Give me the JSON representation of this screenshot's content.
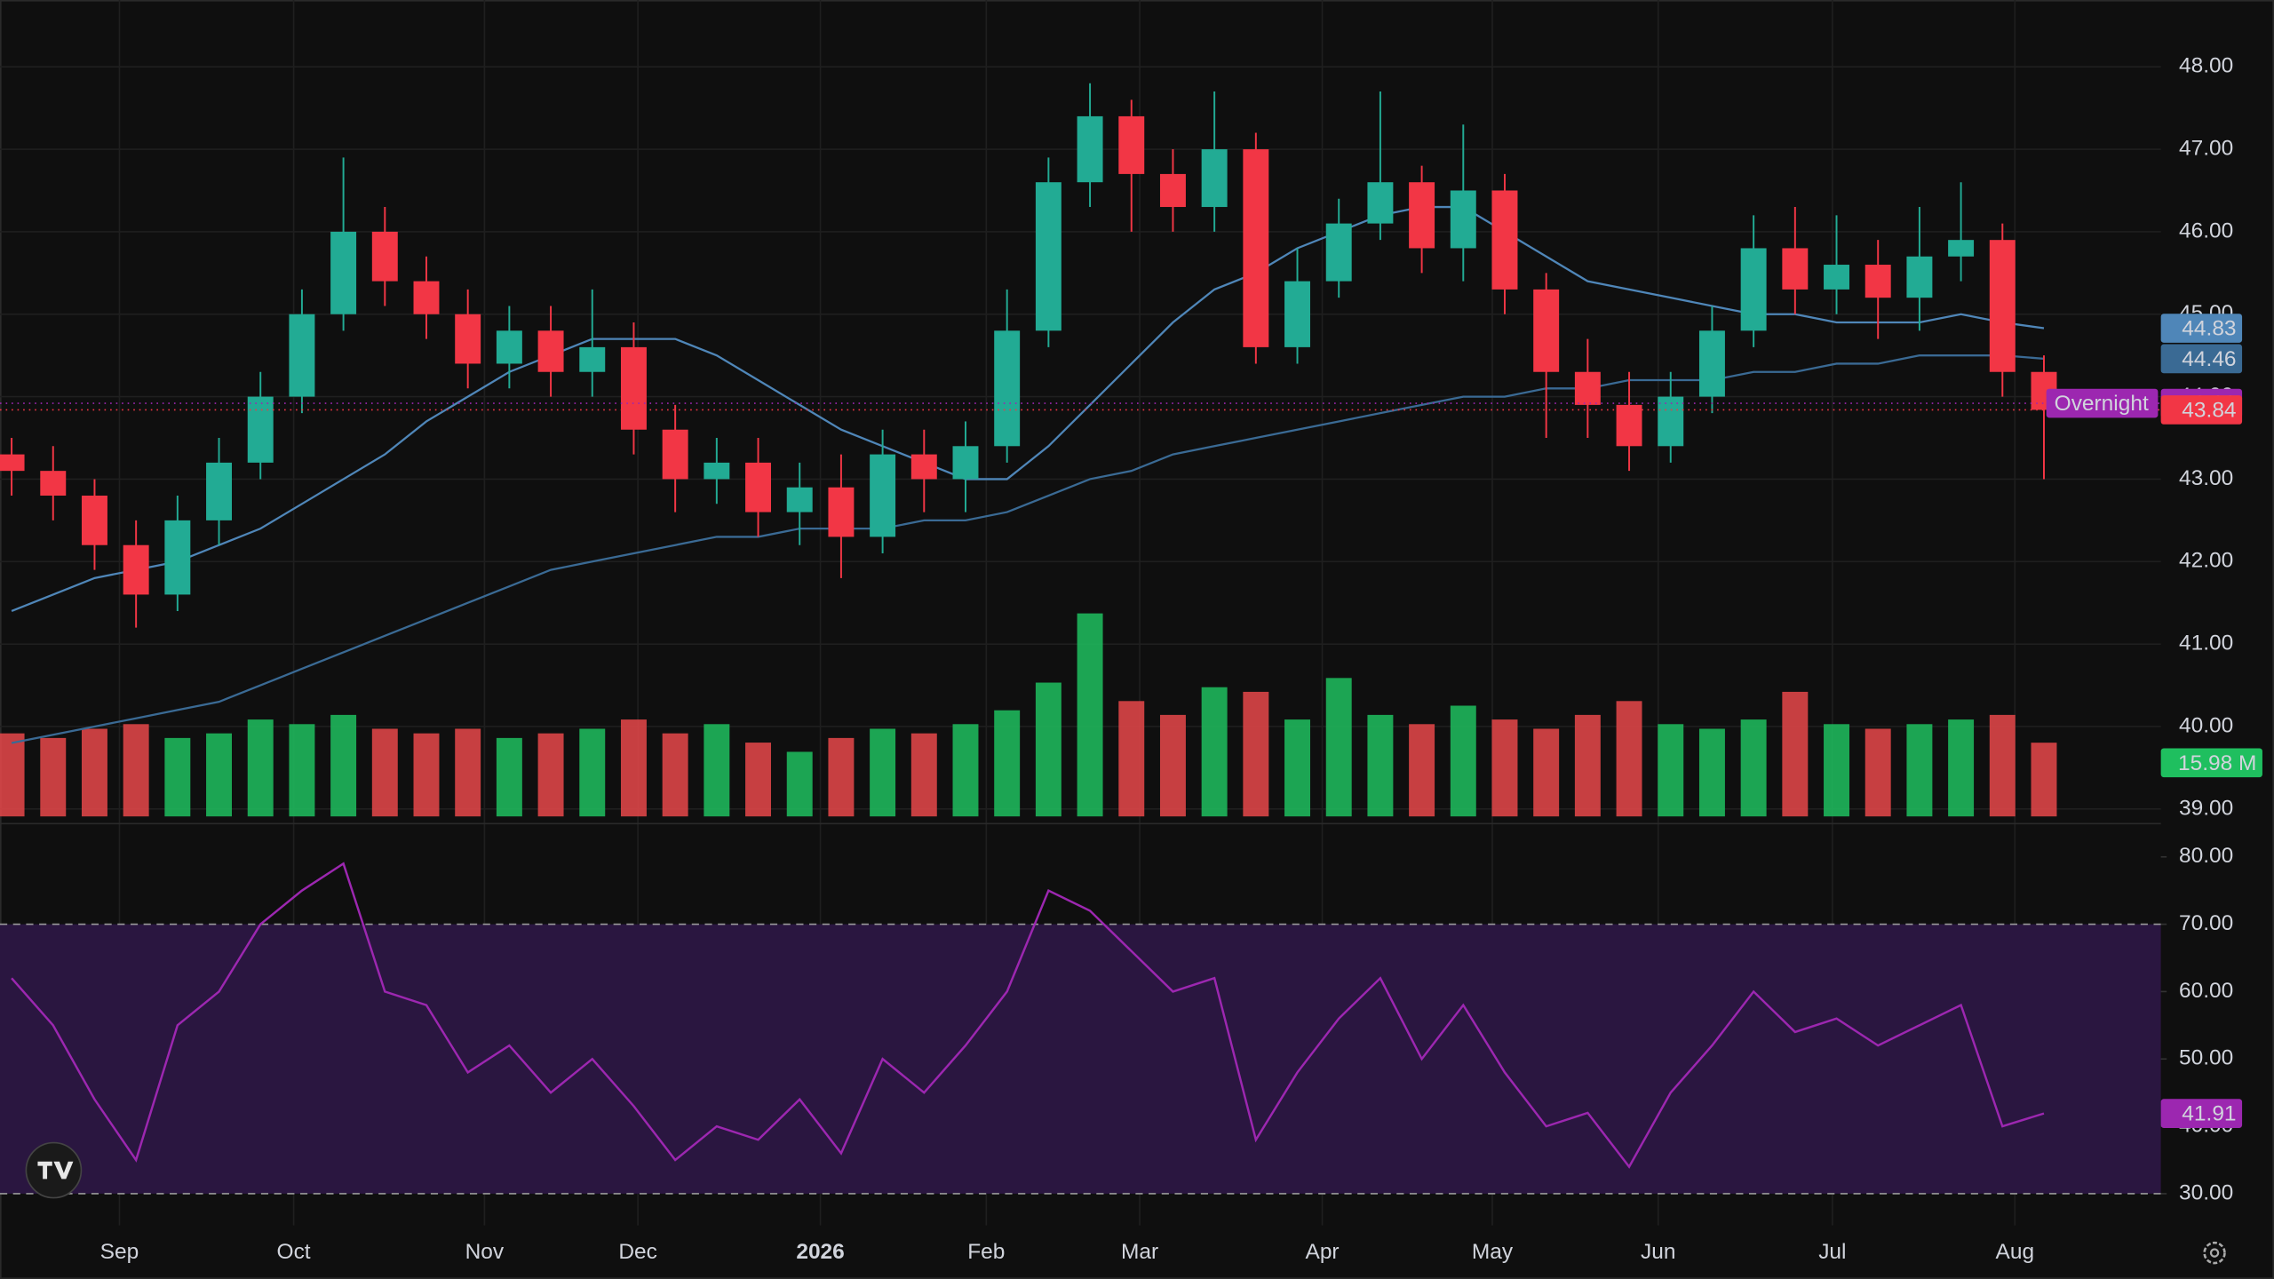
{
  "chart_data": [
    {
      "type": "candlestick",
      "xlim": [
        -0.28,
        51.82
      ],
      "xticks": [
        {
          "value": 2.6,
          "label": "Sep"
        },
        {
          "value": 6.8,
          "label": "Oct"
        },
        {
          "value": 11.4,
          "label": "Nov"
        },
        {
          "value": 15.1,
          "label": "Dec"
        },
        {
          "value": 19.5,
          "label": "2026"
        },
        {
          "value": 23.5,
          "label": "Feb"
        },
        {
          "value": 27.2,
          "label": "Mar"
        },
        {
          "value": 31.6,
          "label": "Apr"
        },
        {
          "value": 35.7,
          "label": "May"
        },
        {
          "value": 39.7,
          "label": "Jun"
        },
        {
          "value": 43.9,
          "label": "Jul"
        },
        {
          "value": 48.3,
          "label": "Aug"
        }
      ],
      "ylim": [
        38.91,
        48.81
      ],
      "yticks": [
        {
          "value": 39,
          "label": "39.00"
        },
        {
          "value": 40,
          "label": "40.00"
        },
        {
          "value": 41,
          "label": "41.00"
        },
        {
          "value": 42,
          "label": "42.00"
        },
        {
          "value": 43,
          "label": "43.00"
        },
        {
          "value": 44,
          "label": "44.00"
        },
        {
          "value": 45,
          "label": "45.00"
        },
        {
          "value": 46,
          "label": "46.00"
        },
        {
          "value": 47,
          "label": "47.00"
        },
        {
          "value": 48,
          "label": "48.00"
        }
      ],
      "grid": true,
      "up_color": "#22ab94",
      "down_color": "#f23645",
      "volume_up_color": "#1fbf5f",
      "volume_down_color": "#e8484a",
      "open": [
        43.3,
        43.1,
        42.8,
        42.2,
        41.6,
        42.5,
        43.2,
        44.0,
        45.0,
        46.0,
        45.4,
        45.0,
        44.4,
        44.8,
        44.3,
        44.6,
        43.6,
        43.0,
        43.2,
        42.6,
        42.9,
        42.3,
        43.3,
        43.0,
        43.4,
        44.8,
        46.6,
        47.4,
        46.7,
        46.3,
        47.0,
        44.6,
        45.4,
        46.1,
        46.6,
        45.8,
        46.5,
        45.3,
        44.3,
        43.9,
        43.4,
        44.0,
        44.8,
        45.8,
        45.3,
        45.6,
        45.2,
        45.7,
        45.9,
        44.3
      ],
      "high": [
        43.5,
        43.4,
        43.0,
        42.5,
        42.8,
        43.5,
        44.3,
        45.3,
        46.9,
        46.3,
        45.7,
        45.3,
        45.1,
        45.1,
        45.3,
        44.9,
        43.9,
        43.5,
        43.5,
        43.2,
        43.3,
        43.6,
        43.6,
        43.7,
        45.3,
        46.9,
        47.8,
        47.6,
        47.0,
        47.7,
        47.2,
        45.8,
        46.4,
        47.7,
        46.8,
        47.3,
        46.7,
        45.5,
        44.7,
        44.3,
        44.3,
        45.1,
        46.2,
        46.3,
        46.2,
        45.9,
        46.3,
        46.6,
        46.1,
        44.5
      ],
      "low": [
        42.8,
        42.5,
        41.9,
        41.2,
        41.4,
        42.2,
        43.0,
        43.8,
        44.8,
        45.1,
        44.7,
        44.1,
        44.1,
        44.0,
        44.0,
        43.3,
        42.6,
        42.7,
        42.3,
        42.2,
        41.8,
        42.1,
        42.6,
        42.6,
        43.2,
        44.6,
        46.3,
        46.0,
        46.0,
        46.0,
        44.4,
        44.4,
        45.2,
        45.9,
        45.5,
        45.4,
        45.0,
        43.5,
        43.5,
        43.1,
        43.2,
        43.8,
        44.6,
        45.0,
        45.0,
        44.7,
        44.8,
        45.4,
        44.0,
        43.0
      ],
      "close": [
        43.1,
        42.8,
        42.2,
        41.6,
        42.5,
        43.2,
        44.0,
        45.0,
        46.0,
        45.4,
        45.0,
        44.4,
        44.8,
        44.3,
        44.6,
        43.6,
        43.0,
        43.2,
        42.6,
        42.9,
        42.3,
        43.3,
        43.0,
        43.4,
        44.8,
        46.6,
        47.4,
        46.7,
        46.3,
        47.0,
        44.6,
        45.4,
        46.1,
        46.6,
        45.8,
        46.5,
        45.3,
        44.3,
        43.9,
        43.4,
        44.0,
        44.8,
        45.8,
        45.3,
        45.6,
        45.2,
        45.7,
        45.9,
        44.3,
        43.84
      ],
      "volume": [
        18,
        17,
        19,
        20,
        17,
        18,
        21,
        20,
        22,
        19,
        18,
        19,
        17,
        18,
        19,
        21,
        18,
        20,
        16,
        14,
        17,
        19,
        18,
        20,
        23,
        29,
        44,
        25,
        22,
        28,
        27,
        21,
        30,
        22,
        20,
        24,
        21,
        19,
        22,
        25,
        20,
        19,
        21,
        27,
        20,
        19,
        20,
        21,
        22,
        15.98
      ],
      "volume_tag": {
        "value": 15.98,
        "label": "15.98 M"
      },
      "moving_averages": [
        {
          "color": "#4f86b8",
          "values": [
            41.4,
            41.6,
            41.8,
            41.9,
            42.0,
            42.2,
            42.4,
            42.7,
            43.0,
            43.3,
            43.7,
            44.0,
            44.3,
            44.5,
            44.7,
            44.7,
            44.7,
            44.5,
            44.2,
            43.9,
            43.6,
            43.4,
            43.2,
            43.0,
            43.0,
            43.4,
            43.9,
            44.4,
            44.9,
            45.3,
            45.5,
            45.8,
            46.0,
            46.2,
            46.3,
            46.3,
            46.0,
            45.7,
            45.4,
            45.3,
            45.2,
            45.1,
            45.0,
            45.0,
            44.9,
            44.9,
            44.9,
            45.0,
            44.9,
            44.83
          ]
        },
        {
          "color": "#3a6a94",
          "values": [
            39.8,
            39.9,
            40.0,
            40.1,
            40.2,
            40.3,
            40.5,
            40.7,
            40.9,
            41.1,
            41.3,
            41.5,
            41.7,
            41.9,
            42.0,
            42.1,
            42.2,
            42.3,
            42.3,
            42.4,
            42.4,
            42.4,
            42.5,
            42.5,
            42.6,
            42.8,
            43.0,
            43.1,
            43.3,
            43.4,
            43.5,
            43.6,
            43.7,
            43.8,
            43.9,
            44.0,
            44.0,
            44.1,
            44.1,
            44.2,
            44.2,
            44.2,
            44.3,
            44.3,
            44.4,
            44.4,
            44.5,
            44.5,
            44.5,
            44.46
          ]
        }
      ],
      "overnight": {
        "label": "Overnight",
        "value": 43.92,
        "color": "#9c27b0"
      }
    },
    {
      "type": "line",
      "color": "#9c27b0",
      "ylim": [
        25.3,
        84.5
      ],
      "yticks": [
        {
          "value": 30,
          "label": "30.00"
        },
        {
          "value": 40,
          "label": "40.00"
        },
        {
          "value": 50,
          "label": "50.00"
        },
        {
          "value": 60,
          "label": "60.00"
        },
        {
          "value": 70,
          "label": "70.00"
        },
        {
          "value": 80,
          "label": "80.00"
        }
      ],
      "band": [
        30,
        70
      ],
      "band_color": "#2a1640",
      "values": [
        62,
        55,
        44,
        35,
        55,
        60,
        70,
        75,
        79,
        60,
        58,
        48,
        52,
        45,
        50,
        43,
        35,
        40,
        38,
        44,
        36,
        50,
        45,
        52,
        60,
        75,
        72,
        66,
        60,
        62,
        38,
        48,
        56,
        62,
        50,
        58,
        48,
        40,
        42,
        34,
        45,
        52,
        60,
        54,
        56,
        52,
        55,
        58,
        40,
        41.91
      ]
    }
  ]
}
